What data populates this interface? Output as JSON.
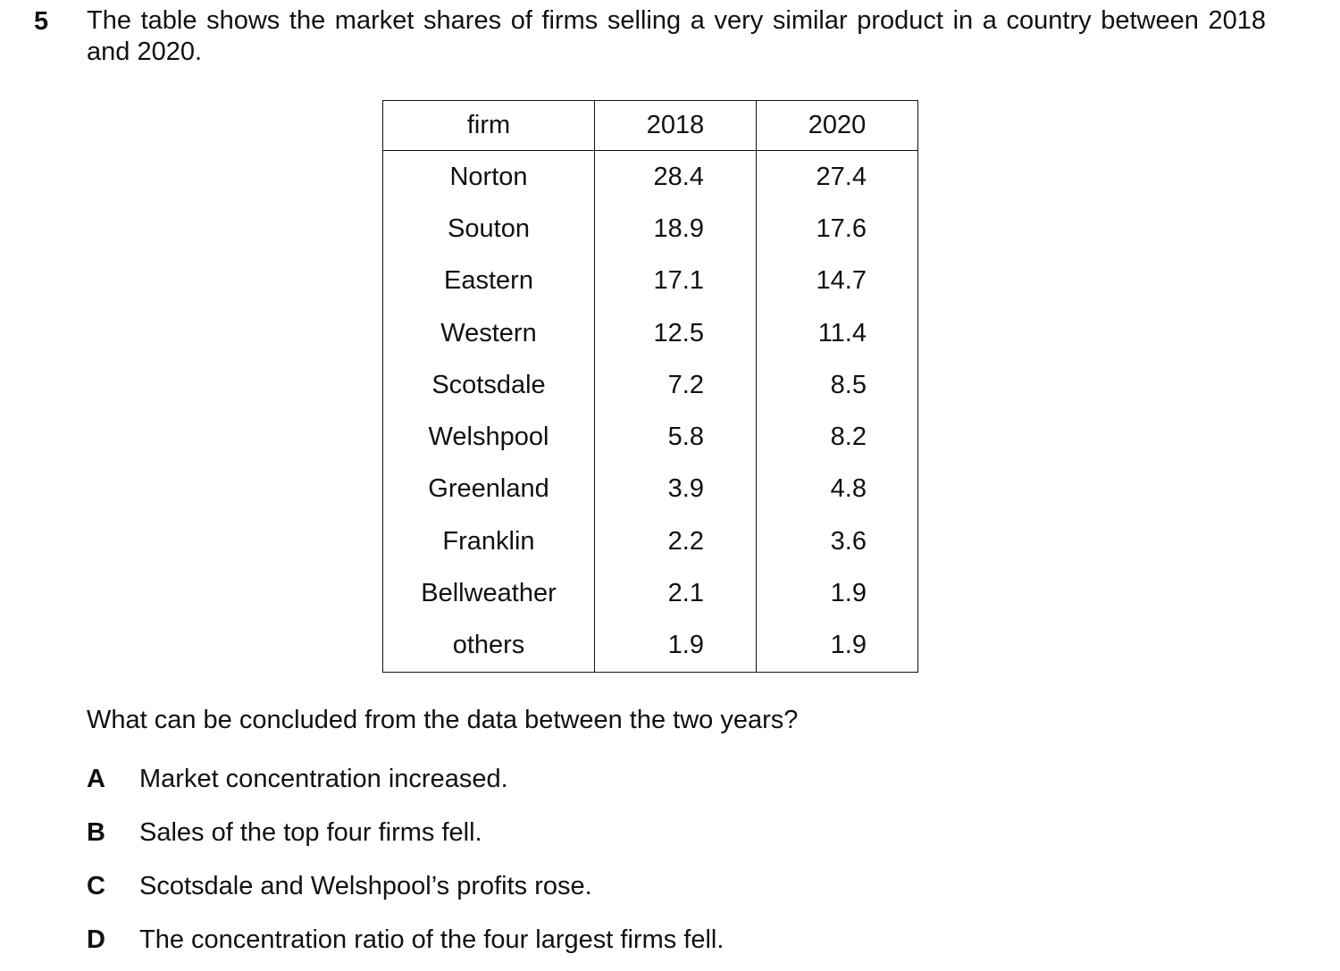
{
  "question_number": "5",
  "stem": "The table shows the market shares of firms selling a very similar product in a country between 2018 and 2020.",
  "table": {
    "headers": [
      "firm",
      "2018",
      "2020"
    ],
    "rows": [
      {
        "firm": "Norton",
        "y2018": "28.4",
        "y2020": "27.4"
      },
      {
        "firm": "Souton",
        "y2018": "18.9",
        "y2020": "17.6"
      },
      {
        "firm": "Eastern",
        "y2018": "17.1",
        "y2020": "14.7"
      },
      {
        "firm": "Western",
        "y2018": "12.5",
        "y2020": "11.4"
      },
      {
        "firm": "Scotsdale",
        "y2018": "7.2",
        "y2020": "8.5"
      },
      {
        "firm": "Welshpool",
        "y2018": "5.8",
        "y2020": "8.2"
      },
      {
        "firm": "Greenland",
        "y2018": "3.9",
        "y2020": "4.8"
      },
      {
        "firm": "Franklin",
        "y2018": "2.2",
        "y2020": "3.6"
      },
      {
        "firm": "Bellweather",
        "y2018": "2.1",
        "y2020": "1.9"
      },
      {
        "firm": "others",
        "y2018": "1.9",
        "y2020": "1.9"
      }
    ]
  },
  "question": "What can be concluded from the data between the two years?",
  "options": [
    {
      "letter": "A",
      "text": "Market concentration increased."
    },
    {
      "letter": "B",
      "text": "Sales of the top four firms fell."
    },
    {
      "letter": "C",
      "text": "Scotsdale and Welshpool’s profits rose."
    },
    {
      "letter": "D",
      "text": "The concentration ratio of the four largest firms fell."
    }
  ]
}
